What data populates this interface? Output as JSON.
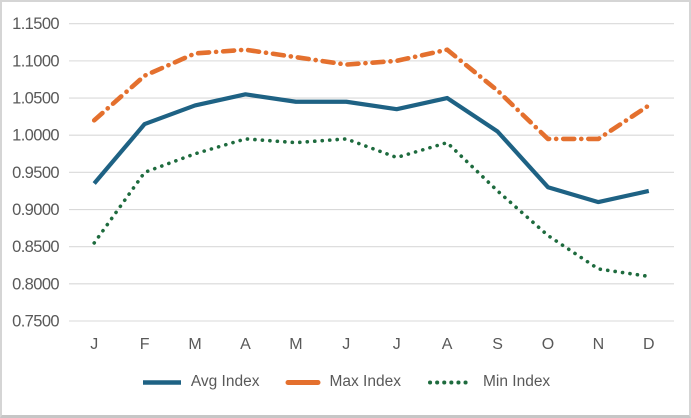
{
  "chart_data": {
    "type": "line",
    "title": "",
    "xlabel": "",
    "ylabel": "",
    "categories": [
      "J",
      "F",
      "M",
      "A",
      "M",
      "J",
      "J",
      "A",
      "S",
      "O",
      "N",
      "D"
    ],
    "series": [
      {
        "name": "Avg Index",
        "color": "#1E6284",
        "style": "solid",
        "values": [
          0.935,
          1.015,
          1.04,
          1.055,
          1.045,
          1.045,
          1.035,
          1.05,
          1.005,
          0.93,
          0.91,
          0.925
        ]
      },
      {
        "name": "Max Index",
        "color": "#E4702E",
        "style": "dash-dot",
        "values": [
          1.02,
          1.08,
          1.11,
          1.115,
          1.105,
          1.095,
          1.1,
          1.115,
          1.06,
          0.995,
          0.995,
          1.04
        ]
      },
      {
        "name": "Min Index",
        "color": "#1E6B3E",
        "style": "dotted",
        "values": [
          0.855,
          0.95,
          0.975,
          0.995,
          0.99,
          0.995,
          0.97,
          0.99,
          0.925,
          0.865,
          0.82,
          0.81
        ]
      }
    ],
    "ylim": [
      0.75,
      1.15
    ],
    "ytick_step": 0.05,
    "ytick_decimals": 4,
    "ytick_labels": [
      "1.1500",
      "1.1000",
      "1.0500",
      "1.0000",
      "0.9500",
      "0.9000",
      "0.8500",
      "0.8000",
      "0.7500"
    ],
    "grid": true,
    "legend_position": "bottom",
    "colors": {
      "axis_text": "#595959",
      "gridline": "#D9D9D9",
      "background": "#FFFFFF",
      "frame_border": "#D5D5D5"
    }
  }
}
